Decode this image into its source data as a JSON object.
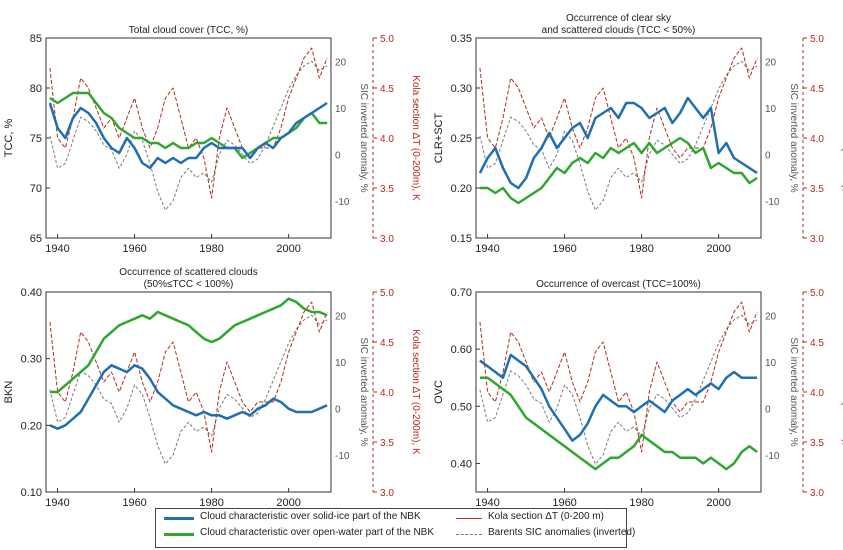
{
  "colors": {
    "solid_ice": "#1f6fb2",
    "open_water": "#2fa72f",
    "kola": "#b5291c",
    "sic": "#7a7a7a",
    "right_axis": "#b5291c"
  },
  "chart_data": [
    {
      "type": "line",
      "title": "Total cloud cover (TCC, %)",
      "subtitle": "",
      "ylabel": "TCC, %",
      "yticks": [
        "65",
        "70",
        "75",
        "80",
        "85"
      ],
      "ylim": [
        65,
        85
      ],
      "xlim": [
        1937,
        2011
      ],
      "xticks": [
        "1940",
        "1960",
        "1980",
        "2000"
      ],
      "sic_ylabel": "SIC inverted anomaly, %",
      "sic_ticks": [
        "-10",
        "0",
        "10",
        "20"
      ],
      "sic_lim": [
        -18,
        25
      ],
      "kola_ylabel": "Kola section ΔT (0-200m), K",
      "kola_ticks": [
        "3.0",
        "3.5",
        "4.0",
        "4.5",
        "5.0"
      ],
      "kola_lim": [
        3.0,
        5.0
      ],
      "x": [
        1938,
        1940,
        1942,
        1944,
        1946,
        1948,
        1950,
        1952,
        1954,
        1956,
        1958,
        1960,
        1962,
        1964,
        1966,
        1968,
        1970,
        1972,
        1974,
        1976,
        1978,
        1980,
        1982,
        1984,
        1986,
        1988,
        1990,
        1992,
        1994,
        1996,
        1998,
        2000,
        2002,
        2004,
        2006,
        2008,
        2010
      ],
      "series": [
        {
          "name": "solid_ice",
          "values": [
            78.5,
            76,
            75,
            77,
            78,
            77.5,
            76.5,
            75,
            74,
            73.5,
            75,
            74,
            72.5,
            72,
            73,
            72.5,
            73,
            72.5,
            73,
            73,
            74,
            74.5,
            74,
            74,
            74,
            74,
            73,
            74,
            74.5,
            74,
            75,
            75.5,
            76.5,
            77,
            77.5,
            78,
            78.5
          ]
        },
        {
          "name": "open_water",
          "values": [
            79,
            78.5,
            79,
            79.5,
            79.5,
            79.5,
            78.5,
            77.5,
            77,
            76,
            75.5,
            75,
            75,
            74.5,
            74.5,
            74,
            74.5,
            74,
            74,
            74.5,
            74.5,
            75,
            74.5,
            74,
            74,
            73,
            73.5,
            74,
            74.5,
            75,
            75,
            75.5,
            76,
            77,
            77.5,
            76.5,
            76.5
          ]
        },
        {
          "name": "kola",
          "values": [
            4.7,
            4.0,
            3.9,
            4.2,
            4.6,
            4.5,
            4.3,
            4.1,
            4.2,
            4.0,
            4.2,
            4.4,
            4.1,
            3.9,
            4.1,
            4.4,
            4.5,
            4.2,
            3.9,
            4.0,
            3.8,
            3.4,
            4.0,
            4.3,
            4.1,
            3.9,
            3.8,
            3.9,
            3.9,
            3.9,
            4.1,
            4.4,
            4.6,
            4.8,
            4.9,
            4.6,
            4.8
          ]
        },
        {
          "name": "sic",
          "values": [
            4,
            -3,
            -2,
            3,
            8,
            7,
            5,
            2,
            1,
            -3,
            0,
            5,
            3,
            -2,
            -8,
            -12,
            -10,
            -5,
            -3,
            -5,
            -4,
            -6,
            0,
            3,
            2,
            0,
            -2,
            -1,
            2,
            6,
            10,
            14,
            17,
            19,
            20,
            18,
            19
          ]
        }
      ]
    },
    {
      "type": "line",
      "title": "Occurrence of clear sky",
      "subtitle": "and scattered clouds (TCC < 50%)",
      "ylabel": "CLR+SCT",
      "yticks": [
        "0.15",
        "0.20",
        "0.25",
        "0.30",
        "0.35"
      ],
      "ylim": [
        0.15,
        0.35
      ],
      "xlim": [
        1937,
        2011
      ],
      "xticks": [
        "1940",
        "1960",
        "1980",
        "2000"
      ],
      "sic_ylabel": "SIC inverted anomaly, %",
      "sic_ticks": [
        "-10",
        "0",
        "10",
        "20"
      ],
      "sic_lim": [
        -18,
        25
      ],
      "kola_ylabel": "Kola section ΔT (0-200m), K",
      "kola_ticks": [
        "3.0",
        "3.5",
        "4.0",
        "4.5",
        "5.0"
      ],
      "kola_lim": [
        3.0,
        5.0
      ],
      "x": [
        1938,
        1940,
        1942,
        1944,
        1946,
        1948,
        1950,
        1952,
        1954,
        1956,
        1958,
        1960,
        1962,
        1964,
        1966,
        1968,
        1970,
        1972,
        1974,
        1976,
        1978,
        1980,
        1982,
        1984,
        1986,
        1988,
        1990,
        1992,
        1994,
        1996,
        1998,
        2000,
        2002,
        2004,
        2006,
        2008,
        2010
      ],
      "series": [
        {
          "name": "solid_ice",
          "values": [
            0.215,
            0.23,
            0.24,
            0.22,
            0.205,
            0.2,
            0.21,
            0.23,
            0.24,
            0.255,
            0.24,
            0.25,
            0.26,
            0.265,
            0.25,
            0.27,
            0.275,
            0.28,
            0.27,
            0.285,
            0.285,
            0.28,
            0.27,
            0.275,
            0.28,
            0.265,
            0.275,
            0.29,
            0.28,
            0.27,
            0.28,
            0.235,
            0.245,
            0.23,
            0.225,
            0.22,
            0.215
          ]
        },
        {
          "name": "open_water",
          "values": [
            0.2,
            0.2,
            0.195,
            0.2,
            0.19,
            0.185,
            0.19,
            0.195,
            0.2,
            0.21,
            0.22,
            0.215,
            0.225,
            0.23,
            0.225,
            0.235,
            0.23,
            0.24,
            0.235,
            0.24,
            0.245,
            0.235,
            0.245,
            0.235,
            0.24,
            0.245,
            0.25,
            0.245,
            0.235,
            0.24,
            0.22,
            0.225,
            0.22,
            0.215,
            0.215,
            0.205,
            0.21
          ]
        },
        {
          "name": "kola",
          "values": [
            4.7,
            4.0,
            3.9,
            4.2,
            4.6,
            4.5,
            4.3,
            4.1,
            4.2,
            4.0,
            4.2,
            4.4,
            4.1,
            3.9,
            4.1,
            4.4,
            4.5,
            4.2,
            3.9,
            4.0,
            3.8,
            3.4,
            4.0,
            4.3,
            4.1,
            3.9,
            3.8,
            3.9,
            3.9,
            3.9,
            4.1,
            4.4,
            4.6,
            4.8,
            4.9,
            4.6,
            4.8
          ]
        },
        {
          "name": "sic",
          "values": [
            4,
            -3,
            -2,
            3,
            8,
            7,
            5,
            2,
            1,
            -3,
            0,
            5,
            3,
            -2,
            -8,
            -12,
            -10,
            -5,
            -3,
            -5,
            -4,
            -6,
            0,
            3,
            2,
            0,
            -2,
            -1,
            2,
            6,
            10,
            14,
            17,
            19,
            20,
            18,
            19
          ]
        }
      ]
    },
    {
      "type": "line",
      "title": "Occurrence of scattered clouds",
      "subtitle": "(50%≤TCC < 100%)",
      "ylabel": "BKN",
      "yticks": [
        "0.10",
        "0.20",
        "0.30",
        "0.40"
      ],
      "ylim": [
        0.1,
        0.4
      ],
      "xlim": [
        1937,
        2011
      ],
      "xticks": [
        "1940",
        "1960",
        "1980",
        "2000"
      ],
      "sic_ylabel": "SIC inverted anomaly, %",
      "sic_ticks": [
        "-10",
        "0",
        "10",
        "20"
      ],
      "sic_lim": [
        -18,
        25
      ],
      "kola_ylabel": "Kola section ΔT (0-200m), K",
      "kola_ticks": [
        "3.0",
        "3.5",
        "4.0",
        "4.5",
        "5.0"
      ],
      "kola_lim": [
        3.0,
        5.0
      ],
      "x": [
        1938,
        1940,
        1942,
        1944,
        1946,
        1948,
        1950,
        1952,
        1954,
        1956,
        1958,
        1960,
        1962,
        1964,
        1966,
        1968,
        1970,
        1972,
        1974,
        1976,
        1978,
        1980,
        1982,
        1984,
        1986,
        1988,
        1990,
        1992,
        1994,
        1996,
        1998,
        2000,
        2002,
        2004,
        2006,
        2008,
        2010
      ],
      "series": [
        {
          "name": "solid_ice",
          "values": [
            0.2,
            0.195,
            0.2,
            0.21,
            0.22,
            0.24,
            0.26,
            0.28,
            0.29,
            0.285,
            0.28,
            0.29,
            0.285,
            0.27,
            0.25,
            0.24,
            0.23,
            0.225,
            0.22,
            0.215,
            0.22,
            0.215,
            0.215,
            0.21,
            0.215,
            0.22,
            0.215,
            0.225,
            0.23,
            0.24,
            0.235,
            0.225,
            0.22,
            0.22,
            0.22,
            0.225,
            0.23
          ]
        },
        {
          "name": "open_water",
          "values": [
            0.25,
            0.25,
            0.26,
            0.27,
            0.28,
            0.29,
            0.31,
            0.33,
            0.34,
            0.35,
            0.355,
            0.36,
            0.365,
            0.36,
            0.37,
            0.365,
            0.36,
            0.355,
            0.35,
            0.34,
            0.33,
            0.325,
            0.33,
            0.34,
            0.35,
            0.355,
            0.36,
            0.365,
            0.37,
            0.375,
            0.38,
            0.39,
            0.385,
            0.375,
            0.37,
            0.37,
            0.365
          ]
        },
        {
          "name": "kola",
          "values": [
            4.7,
            4.0,
            3.9,
            4.2,
            4.6,
            4.5,
            4.3,
            4.1,
            4.2,
            4.0,
            4.2,
            4.4,
            4.1,
            3.9,
            4.1,
            4.4,
            4.5,
            4.2,
            3.9,
            4.0,
            3.8,
            3.4,
            4.0,
            4.3,
            4.1,
            3.9,
            3.8,
            3.9,
            3.9,
            3.9,
            4.1,
            4.4,
            4.6,
            4.8,
            4.9,
            4.6,
            4.8
          ]
        },
        {
          "name": "sic",
          "values": [
            4,
            -3,
            -2,
            3,
            8,
            7,
            5,
            2,
            1,
            -3,
            0,
            5,
            3,
            -2,
            -8,
            -12,
            -10,
            -5,
            -3,
            -5,
            -4,
            -6,
            0,
            3,
            2,
            0,
            -2,
            -1,
            2,
            6,
            10,
            14,
            17,
            19,
            20,
            18,
            19
          ]
        }
      ]
    },
    {
      "type": "line",
      "title": "Occurrence of overcast (TCC=100%)",
      "subtitle": "",
      "ylabel": "OVC",
      "yticks": [
        "0.40",
        "0.50",
        "0.60",
        "0.70"
      ],
      "ylim": [
        0.35,
        0.7
      ],
      "xlim": [
        1937,
        2011
      ],
      "xticks": [
        "1940",
        "1960",
        "1980",
        "2000"
      ],
      "sic_ylabel": "SIC inverted anomaly, %",
      "sic_ticks": [
        "-10",
        "0",
        "10",
        "20"
      ],
      "sic_lim": [
        -18,
        25
      ],
      "kola_ylabel": "Kola section ΔT (0-200m), K",
      "kola_ticks": [
        "3.0",
        "3.5",
        "4.0",
        "4.5",
        "5.0"
      ],
      "kola_lim": [
        3.0,
        5.0
      ],
      "x": [
        1938,
        1940,
        1942,
        1944,
        1946,
        1948,
        1950,
        1952,
        1954,
        1956,
        1958,
        1960,
        1962,
        1964,
        1966,
        1968,
        1970,
        1972,
        1974,
        1976,
        1978,
        1980,
        1982,
        1984,
        1986,
        1988,
        1990,
        1992,
        1994,
        1996,
        1998,
        2000,
        2002,
        2004,
        2006,
        2008,
        2010
      ],
      "series": [
        {
          "name": "solid_ice",
          "values": [
            0.58,
            0.57,
            0.56,
            0.55,
            0.59,
            0.58,
            0.57,
            0.55,
            0.53,
            0.5,
            0.48,
            0.46,
            0.44,
            0.45,
            0.47,
            0.5,
            0.52,
            0.51,
            0.5,
            0.5,
            0.49,
            0.5,
            0.51,
            0.5,
            0.49,
            0.51,
            0.52,
            0.53,
            0.52,
            0.53,
            0.54,
            0.53,
            0.55,
            0.56,
            0.55,
            0.55,
            0.55
          ]
        },
        {
          "name": "open_water",
          "values": [
            0.55,
            0.55,
            0.54,
            0.53,
            0.52,
            0.5,
            0.48,
            0.47,
            0.46,
            0.45,
            0.44,
            0.43,
            0.42,
            0.41,
            0.4,
            0.39,
            0.4,
            0.41,
            0.41,
            0.42,
            0.43,
            0.45,
            0.44,
            0.43,
            0.42,
            0.42,
            0.41,
            0.41,
            0.41,
            0.4,
            0.41,
            0.4,
            0.39,
            0.4,
            0.42,
            0.43,
            0.42
          ]
        },
        {
          "name": "kola",
          "values": [
            4.7,
            4.0,
            3.9,
            4.2,
            4.6,
            4.5,
            4.3,
            4.1,
            4.2,
            4.0,
            4.2,
            4.4,
            4.1,
            3.9,
            4.1,
            4.4,
            4.5,
            4.2,
            3.9,
            4.0,
            3.8,
            3.4,
            4.0,
            4.3,
            4.1,
            3.9,
            3.8,
            3.9,
            3.9,
            3.9,
            4.1,
            4.4,
            4.6,
            4.8,
            4.9,
            4.6,
            4.8
          ]
        },
        {
          "name": "sic",
          "values": [
            4,
            -3,
            -2,
            3,
            8,
            7,
            5,
            2,
            1,
            -3,
            0,
            5,
            3,
            -2,
            -8,
            -12,
            -10,
            -5,
            -3,
            -5,
            -4,
            -6,
            0,
            3,
            2,
            0,
            -2,
            -1,
            2,
            6,
            10,
            14,
            17,
            19,
            20,
            18,
            19
          ]
        }
      ]
    }
  ],
  "legend": {
    "solid_ice": "Cloud characteristic over solid-ice part of the NBK",
    "open_water": "Cloud characteristic over open-water part of the NBK",
    "kola": "Kola section ΔT (0-200 m)",
    "sic": "Barents SIC anomalies (inverted)"
  }
}
